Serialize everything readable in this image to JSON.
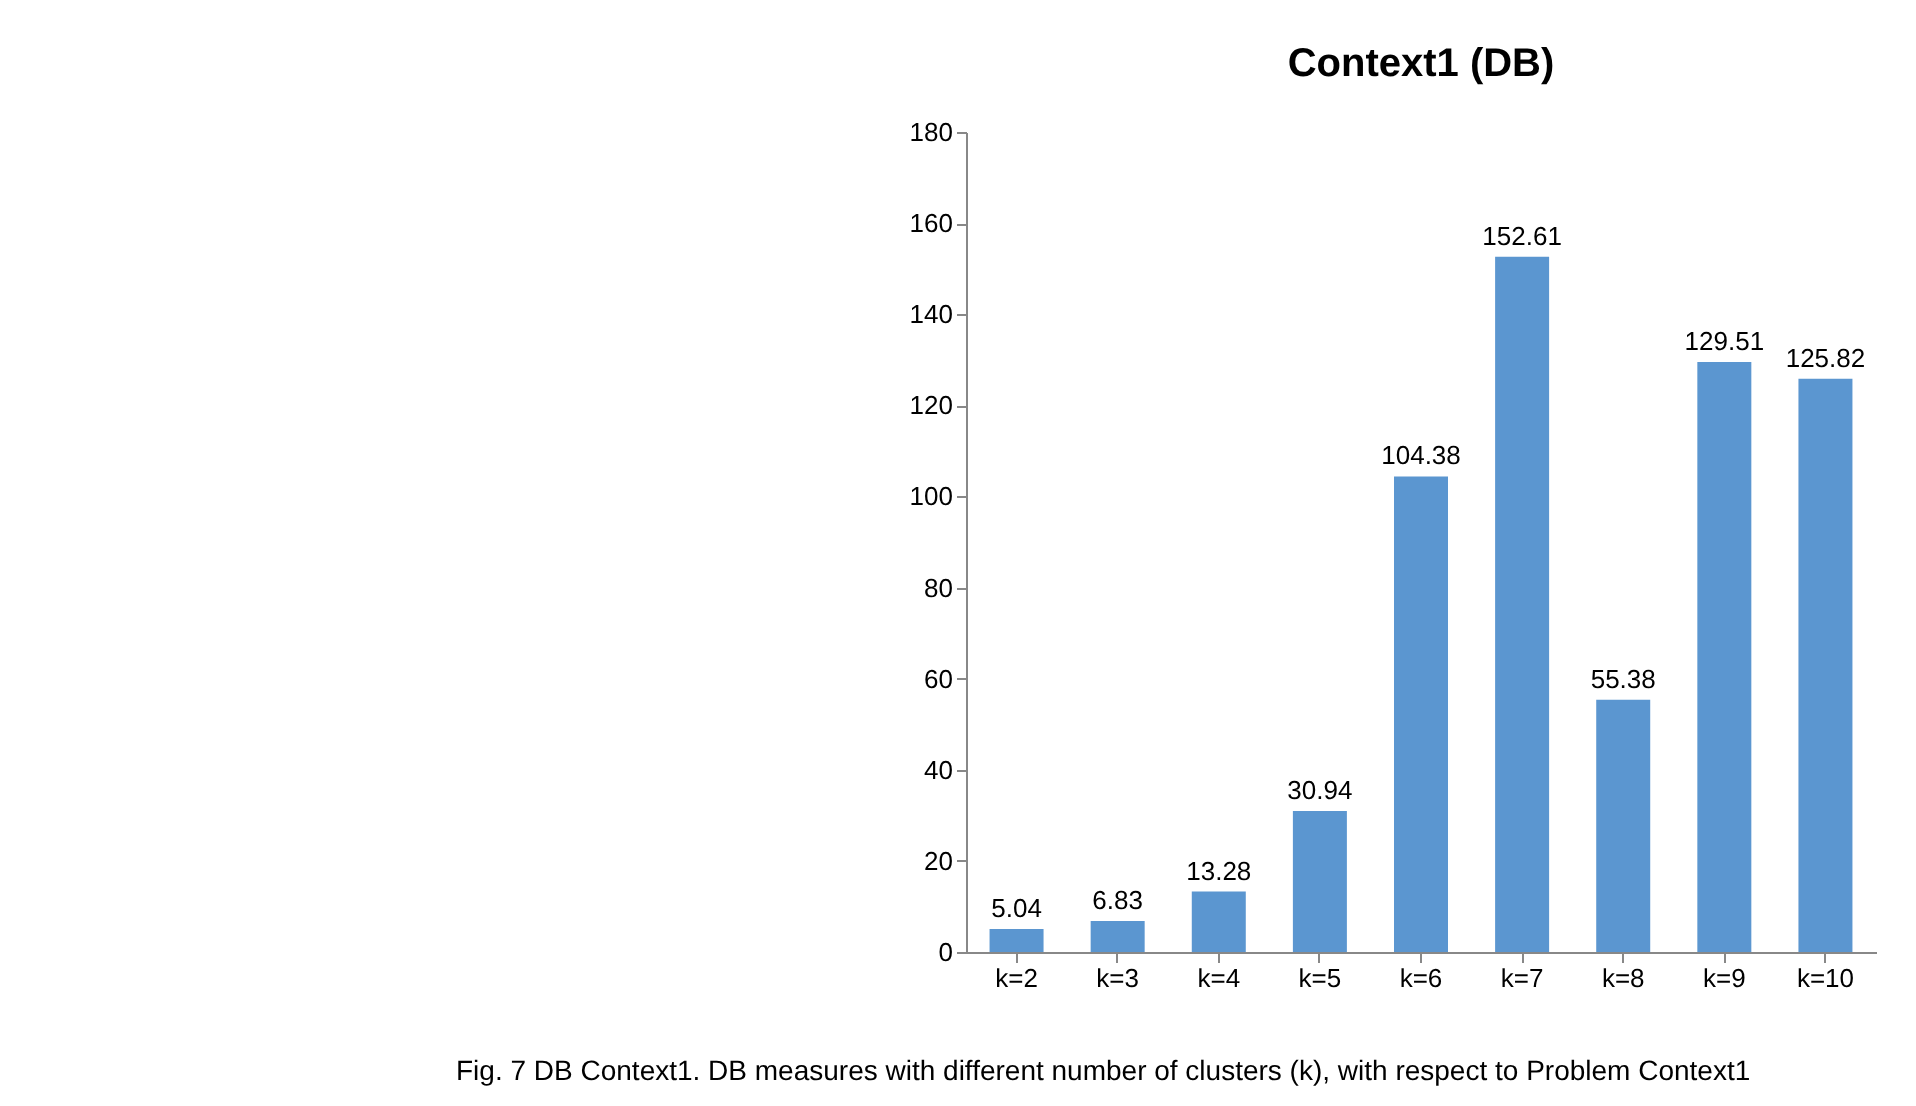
{
  "chart_data": {
    "type": "bar",
    "title": "Context1 (DB)",
    "categories": [
      "k=2",
      "k=3",
      "k=4",
      "k=5",
      "k=6",
      "k=7",
      "k=8",
      "k=9",
      "k=10"
    ],
    "values": [
      5.04,
      6.83,
      13.28,
      30.94,
      104.38,
      152.61,
      55.38,
      129.51,
      125.82
    ],
    "color": "#5b96d0",
    "ylim": [
      0,
      180
    ],
    "yticks": [
      0,
      20,
      40,
      60,
      80,
      100,
      120,
      140,
      160,
      180
    ],
    "grid": false,
    "data_labels": true,
    "annotations": [
      "Fig. 7  DB Context1. DB measures with different number of clusters (k), with respect to Problem Context1"
    ]
  }
}
